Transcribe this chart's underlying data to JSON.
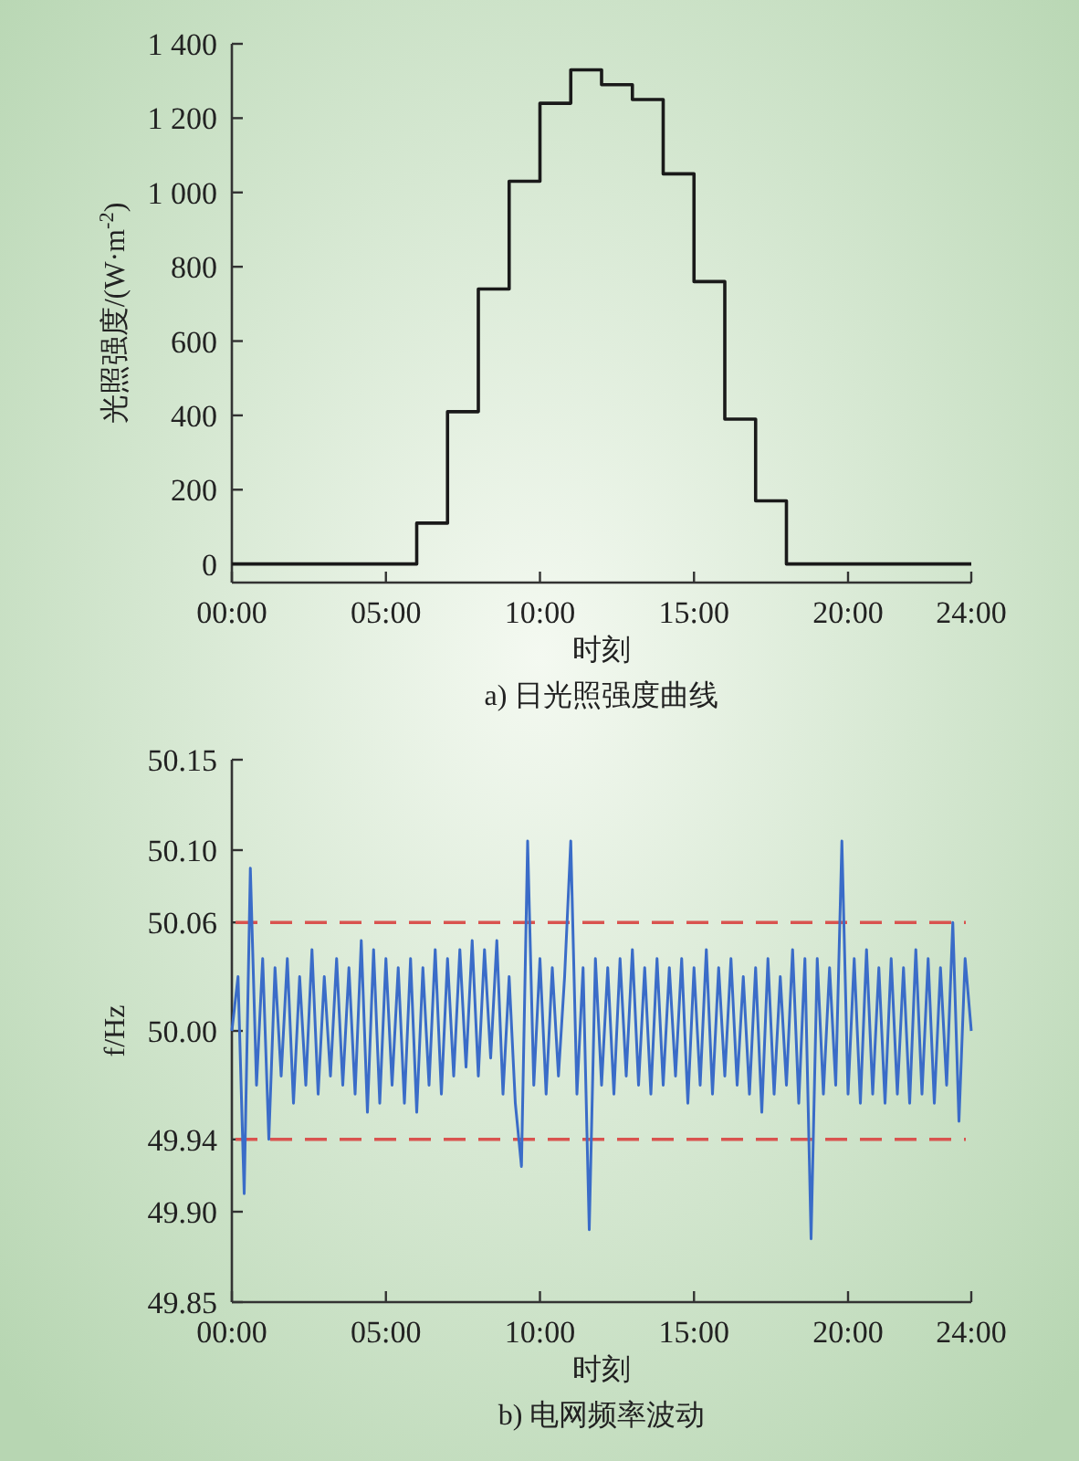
{
  "chart_data": [
    {
      "type": "step",
      "title": "a) 日光照强度曲线",
      "xlabel": "时刻",
      "ylabel": "光照强度/(W·m$^{-2}$)",
      "color": "#1a1a1a",
      "x": [
        0,
        1,
        2,
        3,
        4,
        5,
        6,
        7,
        8,
        9,
        10,
        11,
        12,
        13,
        14,
        15,
        16,
        17,
        18,
        19,
        20,
        21,
        22,
        23,
        24
      ],
      "values": [
        0,
        0,
        0,
        0,
        0,
        0,
        110,
        410,
        740,
        1030,
        1240,
        1330,
        1290,
        1250,
        1050,
        760,
        390,
        170,
        0,
        0,
        0,
        0,
        0,
        0,
        0
      ],
      "xlim": [
        0,
        24
      ],
      "ylim": [
        -50,
        1400
      ],
      "xticks": [
        {
          "value": 0,
          "label": "00:00"
        },
        {
          "value": 5,
          "label": "05:00"
        },
        {
          "value": 10,
          "label": "10:00"
        },
        {
          "value": 15,
          "label": "15:00"
        },
        {
          "value": 20,
          "label": "20:00"
        },
        {
          "value": 24,
          "label": "24:00"
        }
      ],
      "yticks": [
        0,
        200,
        400,
        600,
        800,
        {
          "value": 1000,
          "label": "1 000"
        },
        {
          "value": 1200,
          "label": "1 200"
        },
        {
          "value": 1400,
          "label": "1 400"
        }
      ]
    },
    {
      "type": "line",
      "title": "b) 电网频率波动",
      "xlabel": "时刻",
      "ylabel": "f/Hz",
      "color": "#3a6cc8",
      "x": [
        0,
        0.2,
        0.4,
        0.6,
        0.8,
        1,
        1.2,
        1.4,
        1.6,
        1.8,
        2,
        2.2,
        2.4,
        2.6,
        2.8,
        3,
        3.2,
        3.4,
        3.6,
        3.8,
        4,
        4.2,
        4.4,
        4.6,
        4.8,
        5,
        5.2,
        5.4,
        5.6,
        5.8,
        6,
        6.2,
        6.4,
        6.6,
        6.8,
        7,
        7.2,
        7.4,
        7.6,
        7.8,
        8,
        8.2,
        8.4,
        8.6,
        8.8,
        9,
        9.2,
        9.4,
        9.6,
        9.8,
        10,
        10.2,
        10.4,
        10.6,
        10.8,
        11,
        11.2,
        11.4,
        11.6,
        11.8,
        12,
        12.2,
        12.4,
        12.6,
        12.8,
        13,
        13.2,
        13.4,
        13.6,
        13.8,
        14,
        14.2,
        14.4,
        14.6,
        14.8,
        15,
        15.2,
        15.4,
        15.6,
        15.8,
        16,
        16.2,
        16.4,
        16.6,
        16.8,
        17,
        17.2,
        17.4,
        17.6,
        17.8,
        18,
        18.2,
        18.4,
        18.6,
        18.8,
        19,
        19.2,
        19.4,
        19.6,
        19.8,
        20,
        20.2,
        20.4,
        20.6,
        20.8,
        21,
        21.2,
        21.4,
        21.6,
        21.8,
        22,
        22.2,
        22.4,
        22.6,
        22.8,
        23,
        23.2,
        23.4,
        23.6,
        23.8,
        24
      ],
      "values": [
        50.0,
        50.03,
        49.91,
        50.09,
        49.97,
        50.04,
        49.94,
        50.035,
        49.975,
        50.04,
        49.96,
        50.03,
        49.97,
        50.045,
        49.965,
        50.03,
        49.975,
        50.04,
        49.97,
        50.035,
        49.965,
        50.05,
        49.955,
        50.045,
        49.96,
        50.04,
        49.97,
        50.035,
        49.96,
        50.04,
        49.955,
        50.035,
        49.97,
        50.045,
        49.965,
        50.04,
        49.975,
        50.045,
        49.98,
        50.05,
        49.975,
        50.045,
        49.985,
        50.05,
        49.965,
        50.03,
        49.96,
        49.925,
        50.105,
        49.97,
        50.04,
        49.965,
        50.035,
        49.975,
        50.03,
        50.105,
        49.965,
        50.035,
        49.89,
        50.04,
        49.97,
        50.035,
        49.965,
        50.04,
        49.975,
        50.045,
        49.97,
        50.035,
        49.965,
        50.04,
        49.97,
        50.035,
        49.975,
        50.04,
        49.96,
        50.035,
        49.97,
        50.045,
        49.965,
        50.035,
        49.975,
        50.04,
        49.97,
        50.03,
        49.965,
        50.035,
        49.955,
        50.04,
        49.965,
        50.03,
        49.97,
        50.045,
        49.96,
        50.04,
        49.885,
        50.04,
        49.965,
        50.035,
        49.97,
        50.105,
        49.965,
        50.04,
        49.96,
        50.045,
        49.965,
        50.035,
        49.96,
        50.04,
        49.965,
        50.035,
        49.96,
        50.045,
        49.965,
        50.04,
        49.96,
        50.035,
        49.97,
        50.06,
        49.95,
        50.04,
        50.0
      ],
      "xlim": [
        0,
        24
      ],
      "ylim": [
        49.85,
        50.15
      ],
      "xticks": [
        {
          "value": 0,
          "label": "00:00"
        },
        {
          "value": 5,
          "label": "05:00"
        },
        {
          "value": 10,
          "label": "10:00"
        },
        {
          "value": 15,
          "label": "15:00"
        },
        {
          "value": 20,
          "label": "20:00"
        },
        {
          "value": 24,
          "label": "24:00"
        }
      ],
      "yticks": [
        49.85,
        {
          "value": 49.9,
          "label": "49.90"
        },
        49.94,
        {
          "value": 50,
          "label": "50.00"
        },
        50.06,
        {
          "value": 50.1,
          "label": "50.10"
        },
        50.15
      ],
      "ref_lines": [
        {
          "axis": "y",
          "value": 50.06,
          "color": "#d9534f",
          "line_style": "dashed"
        },
        {
          "axis": "y",
          "value": 49.94,
          "color": "#d9534f",
          "line_style": "dashed"
        }
      ]
    }
  ]
}
